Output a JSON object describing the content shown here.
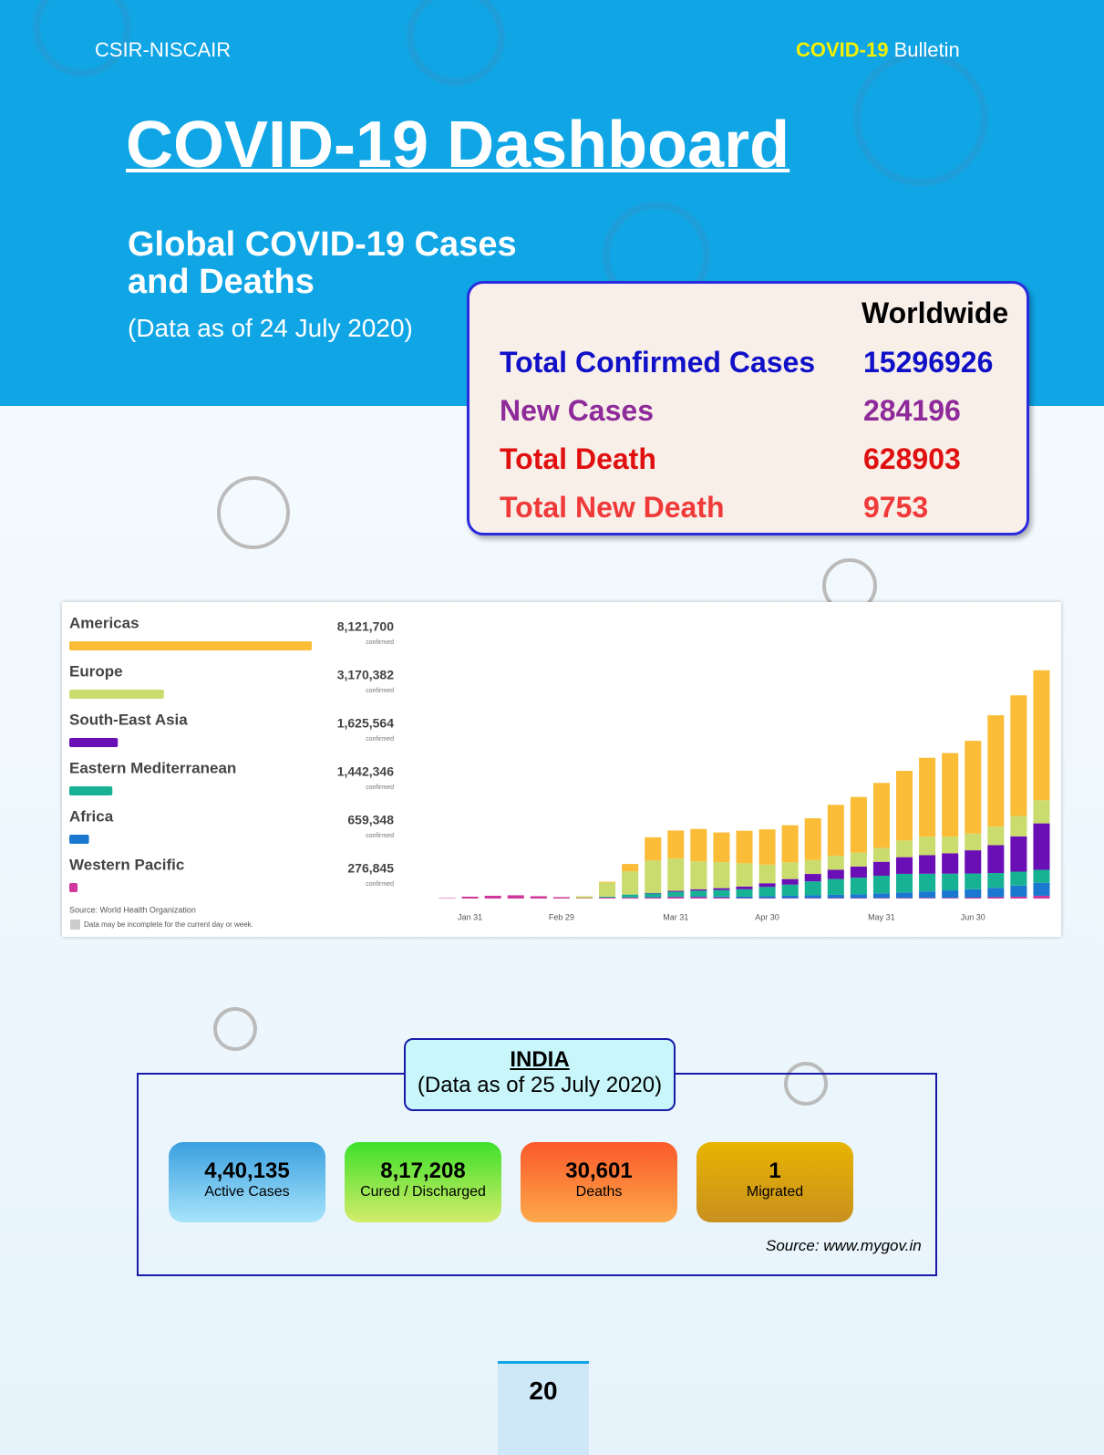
{
  "header": {
    "org": "CSIR-NISCAIR",
    "bulletin_highlight": "COVID-19",
    "bulletin": "Bulletin"
  },
  "title": "COVID-19 Dashboard",
  "global": {
    "heading_line1": "Global COVID-19 Cases",
    "heading_line2": "and Deaths",
    "date": "(Data as of 24 July 2020)"
  },
  "worldwide": {
    "column": "Worldwide",
    "rows": [
      {
        "label": "Total Confirmed Cases",
        "value": 15296926,
        "color": "#1010c8"
      },
      {
        "label": "New Cases",
        "value": 284196,
        "color": "#8e2a9a"
      },
      {
        "label": "Total Death",
        "value": 628903,
        "color": "#e01010"
      },
      {
        "label": "Total New Death",
        "value": 9753,
        "color": "#f03a3a"
      }
    ]
  },
  "chart_data": [
    {
      "type": "hbar",
      "categories": [
        "Americas",
        "Europe",
        "South-East Asia",
        "Eastern Mediterranean",
        "Africa",
        "Western Pacific"
      ],
      "values": [
        8121700,
        3170382,
        1625564,
        1442346,
        659348,
        276845
      ],
      "value_labels": [
        "8,121,700",
        "3,170,382",
        "1,625,564",
        "1,442,346",
        "659,348",
        "276,845"
      ],
      "value_note": "confirmed",
      "colors": [
        "#fbbd37",
        "#cbdc6e",
        "#6a0fb5",
        "#17b294",
        "#1a78d0",
        "#d0389a"
      ],
      "xlim": [
        0,
        8121700
      ],
      "source": "Source: World Health Organization",
      "note": "Data may be incomplete for the current day or week."
    },
    {
      "type": "stacked-bar",
      "categories": [
        null,
        "Jan 31",
        null,
        null,
        null,
        "Feb 29",
        null,
        null,
        null,
        null,
        "Mar 31",
        null,
        null,
        null,
        "Apr 30",
        null,
        null,
        null,
        null,
        "May 31",
        null,
        null,
        null,
        "Jun 30",
        null,
        null,
        null
      ],
      "ylim": [
        0,
        290000
      ],
      "series": [
        {
          "color": "#d0389a",
          "values": [
            500,
            2000,
            3000,
            3500,
            2500,
            1500,
            500,
            1000,
            1000,
            1000,
            1500,
            1500,
            1000,
            500,
            500,
            500,
            500,
            500,
            500,
            600,
            600,
            700,
            800,
            1000,
            1500,
            2000,
            3000
          ]
        },
        {
          "color": "#1a78d0",
          "values": [
            0,
            0,
            0,
            0,
            0,
            0,
            0,
            100,
            300,
            500,
            800,
            1000,
            1200,
            1500,
            2000,
            2500,
            3000,
            3500,
            4000,
            5000,
            6000,
            7000,
            8000,
            9000,
            10000,
            12000,
            14000
          ]
        },
        {
          "color": "#17b294",
          "values": [
            0,
            0,
            0,
            0,
            0,
            0,
            0,
            1000,
            3000,
            4000,
            5000,
            6000,
            7000,
            8000,
            10000,
            12000,
            15000,
            17000,
            18000,
            19000,
            20000,
            19000,
            18000,
            17000,
            16000,
            15000,
            14000
          ]
        },
        {
          "color": "#6a0fb5",
          "values": [
            0,
            0,
            0,
            0,
            0,
            0,
            0,
            0,
            0,
            500,
            1000,
            1500,
            2000,
            3000,
            4000,
            6000,
            8000,
            10000,
            12000,
            15000,
            18000,
            20000,
            22000,
            25000,
            30000,
            38000,
            50000
          ]
        },
        {
          "color": "#cbdc6e",
          "values": [
            0,
            0,
            0,
            0,
            0,
            0,
            2000,
            15000,
            25000,
            35000,
            35000,
            30000,
            28000,
            25000,
            20000,
            18000,
            15000,
            15000,
            15000,
            15000,
            18000,
            20000,
            18000,
            18000,
            20000,
            22000,
            25000
          ]
        },
        {
          "color": "#fbbd37",
          "values": [
            0,
            0,
            0,
            0,
            0,
            0,
            0,
            1000,
            8000,
            25000,
            30000,
            35000,
            32000,
            35000,
            38000,
            40000,
            45000,
            55000,
            60000,
            70000,
            75000,
            85000,
            90000,
            100000,
            120000,
            130000,
            140000
          ]
        }
      ]
    }
  ],
  "india": {
    "title": "INDIA",
    "date": "(Data as of 25 July 2020)",
    "cards": [
      {
        "value": "4,40,135",
        "label": "Active Cases"
      },
      {
        "value": "8,17,208",
        "label": "Cured / Discharged"
      },
      {
        "value": "30,601",
        "label": "Deaths"
      },
      {
        "value": "1",
        "label": "Migrated"
      }
    ],
    "source": "Source: www.mygov.in"
  },
  "page_number": 20
}
